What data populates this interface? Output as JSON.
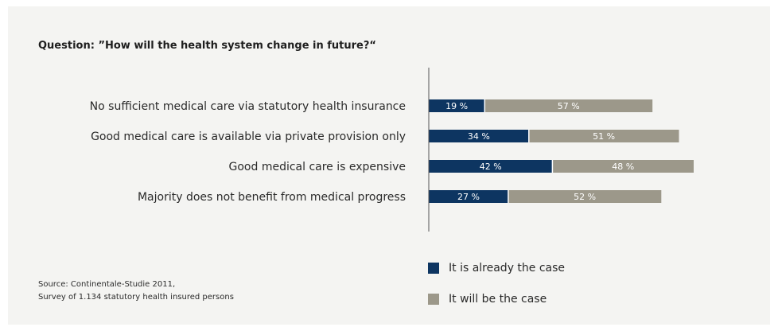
{
  "question": "Question: ”How will the health system change in future?“",
  "source": {
    "line1": "Source: Continentale-Studie 2011,",
    "line2": "Survey of 1.134 statutory health insured persons"
  },
  "colors": {
    "already": "#0d3561",
    "will": "#9c988a",
    "axis": "#555555"
  },
  "chart_data": {
    "type": "bar",
    "orientation": "horizontal",
    "stacked": true,
    "categories": [
      "No sufficient medical care via statutory health insurance",
      "Good medical care is available via private provision only",
      "Good medical care is expensive",
      "Majority does not benefit from medical progress"
    ],
    "series": [
      {
        "name": "It is already the case",
        "values": [
          19,
          34,
          42,
          27
        ],
        "labels": [
          "19 %",
          "34 %",
          "42 %",
          "27 %"
        ]
      },
      {
        "name": "It will be the case",
        "values": [
          57,
          51,
          48,
          52
        ],
        "labels": [
          "57 %",
          "51 %",
          "48 %",
          "52 %"
        ]
      }
    ],
    "legend_position": "bottom",
    "grid": false
  }
}
